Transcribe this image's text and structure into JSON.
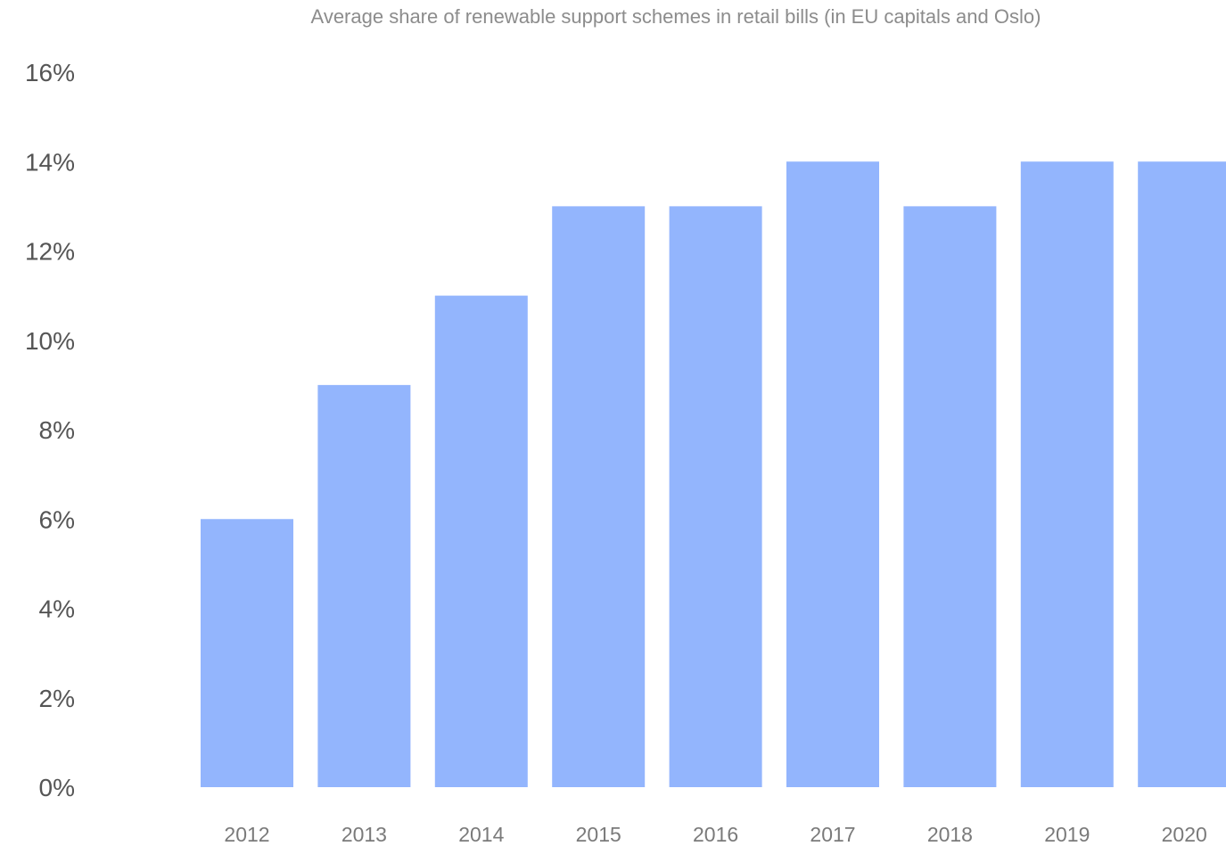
{
  "chart_data": {
    "type": "bar",
    "title": "Average share of renewable support schemes in retail bills (in EU capitals and Oslo)",
    "xlabel": "",
    "ylabel": "",
    "categories": [
      "2012",
      "2013",
      "2014",
      "2015",
      "2016",
      "2017",
      "2018",
      "2019",
      "2020"
    ],
    "values": [
      6,
      9,
      11,
      13,
      13,
      14,
      13,
      14,
      14
    ],
    "value_unit": "%",
    "ylim": [
      0,
      16
    ],
    "y_ticks": [
      "0%",
      "2%",
      "4%",
      "6%",
      "8%",
      "10%",
      "12%",
      "14%",
      "16%"
    ],
    "grid": false,
    "legend": "none",
    "bar_color": "#93b5fd"
  }
}
